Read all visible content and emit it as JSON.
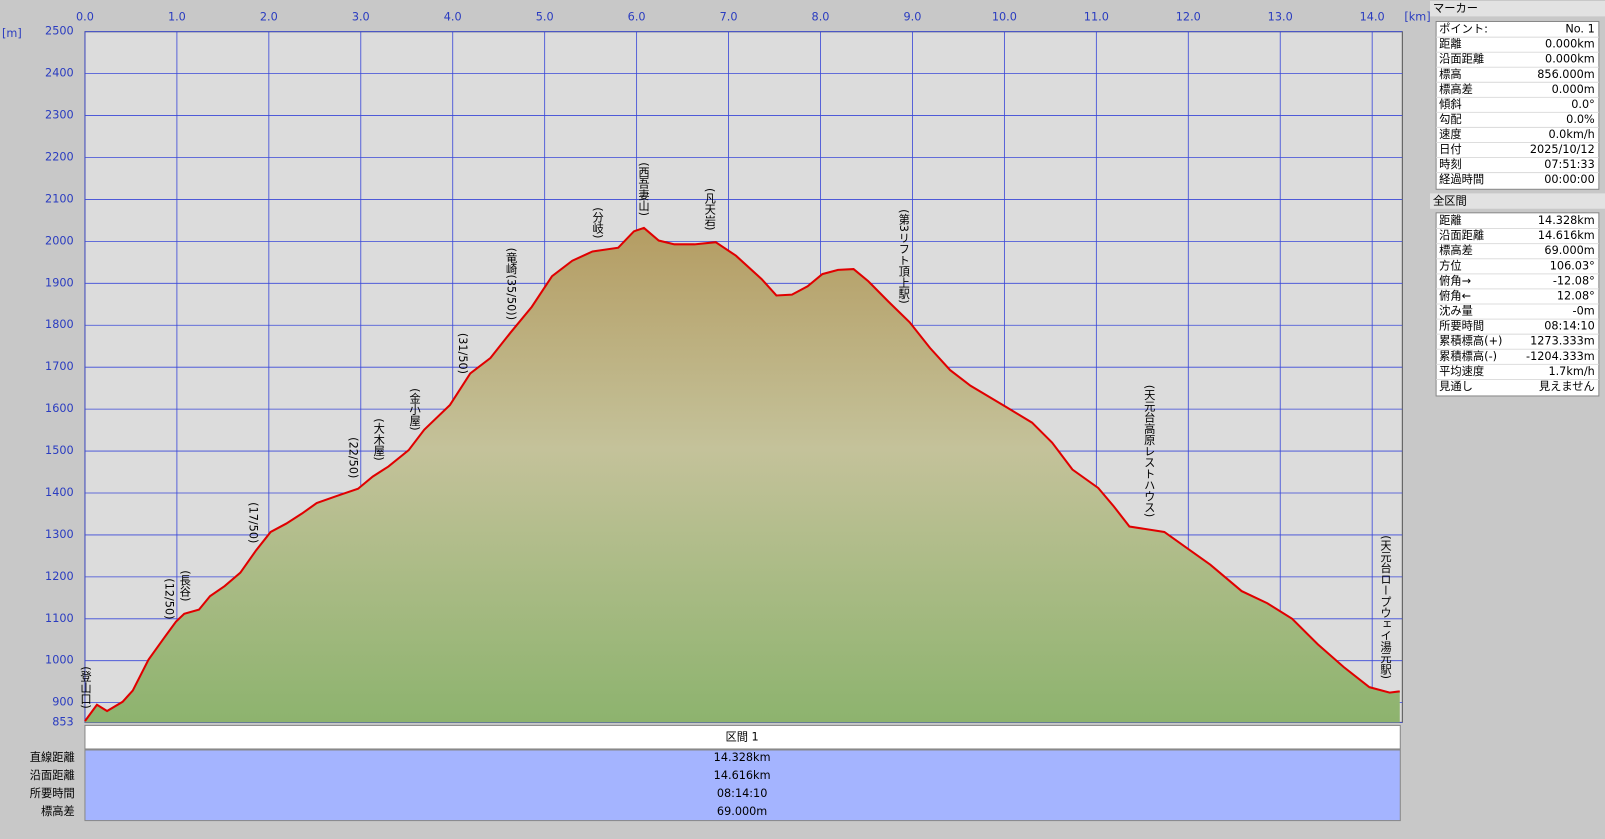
{
  "chart_data": {
    "type": "area",
    "color": "#e00000",
    "grid": true,
    "x_unit": "[km]",
    "y_unit": "[m]",
    "xlim": [
      0,
      14.328
    ],
    "ylim": [
      853,
      2500
    ],
    "xticks": [
      {
        "value": 0,
        "label": "0.0"
      },
      {
        "value": 1,
        "label": "1.0"
      },
      {
        "value": 2,
        "label": "2.0"
      },
      {
        "value": 3,
        "label": "3.0"
      },
      {
        "value": 4,
        "label": "4.0"
      },
      {
        "value": 5,
        "label": "5.0"
      },
      {
        "value": 6,
        "label": "6.0"
      },
      {
        "value": 7,
        "label": "7.0"
      },
      {
        "value": 8,
        "label": "8.0"
      },
      {
        "value": 9,
        "label": "9.0"
      },
      {
        "value": 10,
        "label": "10.0"
      },
      {
        "value": 11,
        "label": "11.0"
      },
      {
        "value": 12,
        "label": "12.0"
      },
      {
        "value": 13,
        "label": "13.0"
      },
      {
        "value": 14,
        "label": "14.0"
      }
    ],
    "yticks": [
      853,
      900,
      1000,
      1100,
      1200,
      1300,
      1400,
      1500,
      1600,
      1700,
      1800,
      1900,
      2000,
      2100,
      2200,
      2300,
      2400,
      2500
    ],
    "x": [
      0,
      0.13,
      0.24,
      0.41,
      0.52,
      0.69,
      0.86,
      0.99,
      1.08,
      1.24,
      1.36,
      1.52,
      1.69,
      1.86,
      2.02,
      2.19,
      2.36,
      2.52,
      2.74,
      2.97,
      3.13,
      3.3,
      3.52,
      3.69,
      3.97,
      4.19,
      4.41,
      4.63,
      4.86,
      5.08,
      5.3,
      5.52,
      5.8,
      5.97,
      6.08,
      6.24,
      6.41,
      6.63,
      6.86,
      7.08,
      7.36,
      7.52,
      7.69,
      7.86,
      8.02,
      8.19,
      8.36,
      8.52,
      8.74,
      8.97,
      9.19,
      9.41,
      9.63,
      10.02,
      10.3,
      10.52,
      10.74,
      11.02,
      11.19,
      11.36,
      11.74,
      11.97,
      12.24,
      12.58,
      12.86,
      13.13,
      13.41,
      13.69,
      13.97,
      14.19,
      14.3
    ],
    "values": [
      856,
      895,
      880,
      902,
      929,
      1002,
      1054,
      1093,
      1112,
      1122,
      1154,
      1178,
      1210,
      1263,
      1307,
      1327,
      1351,
      1376,
      1393,
      1410,
      1439,
      1463,
      1502,
      1551,
      1610,
      1685,
      1722,
      1783,
      1844,
      1917,
      1954,
      1976,
      1985,
      2024,
      2032,
      2002,
      1993,
      1993,
      1998,
      1966,
      1910,
      1871,
      1873,
      1893,
      1922,
      1932,
      1934,
      1905,
      1856,
      1807,
      1746,
      1693,
      1656,
      1605,
      1568,
      1520,
      1456,
      1412,
      1368,
      1320,
      1307,
      1271,
      1229,
      1166,
      1137,
      1100,
      1039,
      985,
      937,
      924,
      927
    ],
    "annotations": [
      {
        "x": 0,
        "text": "(登山口)"
      },
      {
        "x": 0.91,
        "text": "(12/50)"
      },
      {
        "x": 1.08,
        "text": "(長谷)"
      },
      {
        "x": 1.82,
        "text": "(17/50)"
      },
      {
        "x": 2.91,
        "text": "(22/50)"
      },
      {
        "x": 3.19,
        "text": "(大木屋)"
      },
      {
        "x": 3.58,
        "text": "(金小屋)"
      },
      {
        "x": 4.1,
        "text": "(31/50)"
      },
      {
        "x": 4.63,
        "text": "(竜崎(35/50))"
      },
      {
        "x": 5.57,
        "text": "(分岐)"
      },
      {
        "x": 6.07,
        "text": "(西吾妻山)"
      },
      {
        "x": 6.79,
        "text": "(凡天岩)"
      },
      {
        "x": 8.9,
        "text": "(第3リフト頂上駅)"
      },
      {
        "x": 11.57,
        "text": "(天元台高原レストハウス)"
      },
      {
        "x": 14.14,
        "text": "(天元台ロープウェイ湯元駅)"
      }
    ]
  },
  "marker_panel": {
    "title": "マーカー",
    "rows": [
      [
        "ポイント:",
        "No. 1"
      ],
      [
        "距離",
        "0.000km"
      ],
      [
        "沿面距離",
        "0.000km"
      ],
      [
        "標高",
        "856.000m"
      ],
      [
        "標高差",
        "0.000m"
      ],
      [
        "傾斜",
        "0.0°"
      ],
      [
        "勾配",
        "0.0%"
      ],
      [
        "速度",
        "0.0km/h"
      ],
      [
        "日付",
        "2025/10/12"
      ],
      [
        "時刻",
        "07:51:33"
      ],
      [
        "経過時間",
        "00:00:00"
      ]
    ]
  },
  "total_panel": {
    "title": "全区間",
    "rows": [
      [
        "距離",
        "14.328km"
      ],
      [
        "沿面距離",
        "14.616km"
      ],
      [
        "標高差",
        "69.000m"
      ],
      [
        "方位",
        "106.03°"
      ],
      [
        "俯角→",
        "-12.08°"
      ],
      [
        "俯角←",
        "12.08°"
      ],
      [
        "沈み量",
        "-0m"
      ],
      [
        "所要時間",
        "08:14:10"
      ],
      [
        "累積標高(+)",
        "1273.333m"
      ],
      [
        "累積標高(-)",
        "-1204.333m"
      ],
      [
        "平均速度",
        "1.7km/h"
      ],
      [
        "見通し",
        "見えません"
      ]
    ]
  },
  "section_table": {
    "header": "区間 1",
    "rows": [
      [
        "直線距離",
        "14.328km"
      ],
      [
        "沿面距離",
        "14.616km"
      ],
      [
        "所要時間",
        "08:14:10"
      ],
      [
        "標高差",
        "69.000m"
      ]
    ]
  }
}
